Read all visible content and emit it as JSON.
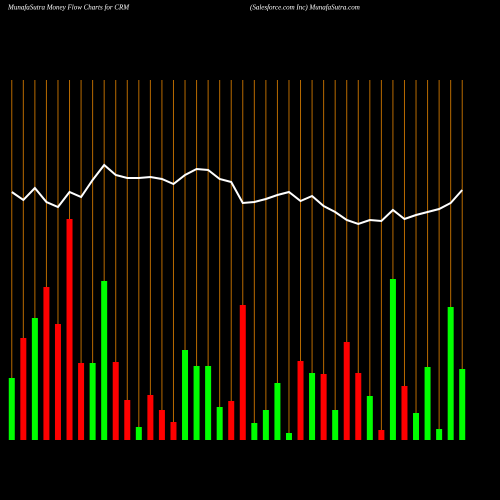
{
  "chart_data": {
    "type": "bar",
    "title": "MunafaSutra  Money Flow  Charts for CRM",
    "subtitle": "(Salesforce.com Inc) MunafaSutra.com",
    "categories": [
      null,
      null,
      null,
      null,
      null,
      null,
      null,
      null,
      null,
      null,
      null,
      null,
      null,
      null,
      null,
      null,
      null,
      null,
      null,
      null,
      null,
      null,
      null,
      null,
      null,
      null,
      null,
      null,
      null,
      null,
      null,
      null,
      null,
      null,
      null,
      null,
      null,
      null,
      null,
      null
    ],
    "values": [
      62,
      102,
      122,
      153,
      116,
      221,
      77,
      77,
      159,
      78,
      40,
      13,
      45,
      30,
      18,
      90,
      74,
      74,
      33,
      39,
      135,
      17,
      30,
      57,
      7,
      79,
      67,
      66,
      30,
      98,
      67,
      44,
      10,
      161,
      54,
      27,
      73,
      11,
      133,
      71
    ],
    "colors": [
      "#00ff00",
      "#ff0000",
      "#00ff00",
      "#ff0000",
      "#ff0000",
      "#ff0000",
      "#ff0000",
      "#00ff00",
      "#00ff00",
      "#ff0000",
      "#ff0000",
      "#00ff00",
      "#ff0000",
      "#ff0000",
      "#ff0000",
      "#00ff00",
      "#00ff00",
      "#00ff00",
      "#00ff00",
      "#ff0000",
      "#ff0000",
      "#00ff00",
      "#00ff00",
      "#00ff00",
      "#00ff00",
      "#ff0000",
      "#00ff00",
      "#ff0000",
      "#00ff00",
      "#ff0000",
      "#ff0000",
      "#00ff00",
      "#ff0000",
      "#00ff00",
      "#ff0000",
      "#00ff00",
      "#00ff00",
      "#00ff00",
      "#00ff00",
      "#00ff00"
    ],
    "line_values": [
      248,
      240,
      252,
      238,
      233,
      248,
      243,
      260,
      275,
      265,
      262,
      262,
      263,
      261,
      256,
      265,
      271,
      270,
      261,
      258,
      237,
      238,
      241,
      245,
      248,
      239,
      244,
      234,
      228,
      220,
      216,
      220,
      219,
      230,
      221,
      225,
      228,
      231,
      237,
      250
    ],
    "line_color": "#ffffff",
    "grid_color": "#b86a00"
  }
}
